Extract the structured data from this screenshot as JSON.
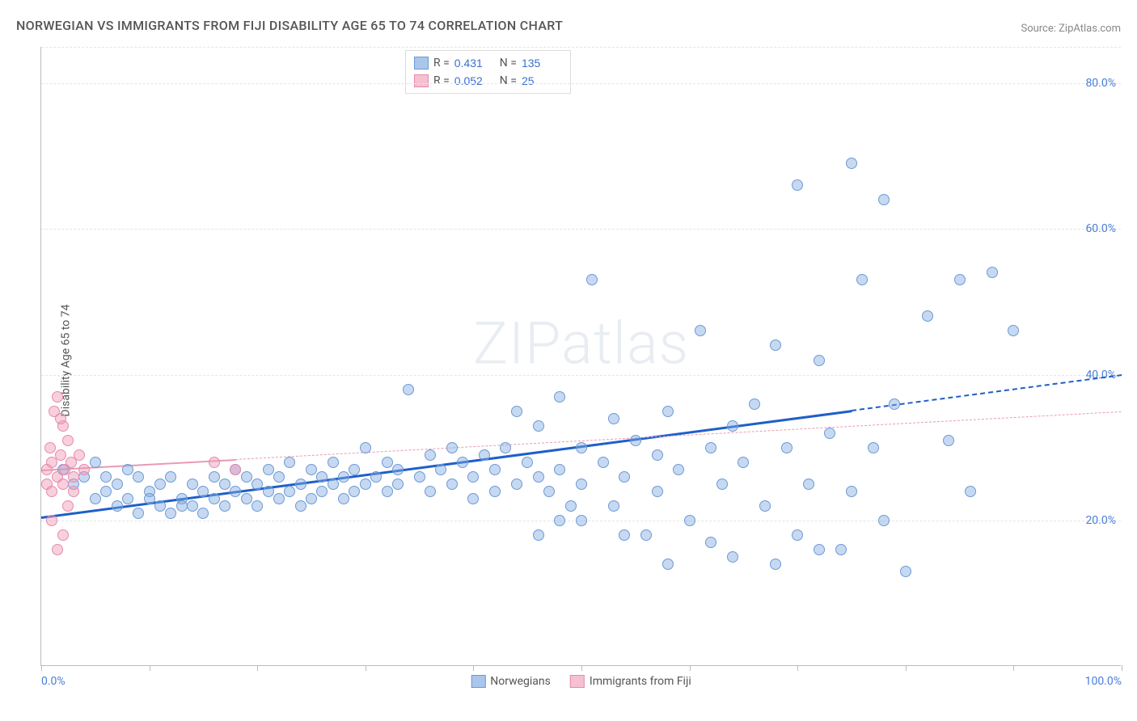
{
  "title": "NORWEGIAN VS IMMIGRANTS FROM FIJI DISABILITY AGE 65 TO 74 CORRELATION CHART",
  "source": "Source: ZipAtlas.com",
  "ylabel": "Disability Age 65 to 74",
  "watermark": "ZIPatlas",
  "chart": {
    "type": "scatter",
    "background_color": "#ffffff",
    "grid_color": "#e6e6e6",
    "axis_color": "#bbbbbb",
    "title_fontsize": 16,
    "label_fontsize": 14,
    "tick_fontsize": 14,
    "tick_label_color": "#4a7dd8",
    "xlim": [
      0,
      100
    ],
    "ylim": [
      0,
      85
    ],
    "x_ticks": [
      0,
      10,
      20,
      30,
      40,
      50,
      60,
      70,
      80,
      90,
      100
    ],
    "x_tick_labels": {
      "0": "0.0%",
      "100": "100.0%"
    },
    "y_gridlines": [
      20,
      40,
      60,
      80
    ],
    "y_tick_labels": {
      "20": "20.0%",
      "40": "40.0%",
      "60": "60.0%",
      "80": "80.0%"
    },
    "marker_radius": 7,
    "marker_stroke_width": 1.2,
    "series": [
      {
        "name": "Norwegians",
        "fill_color": "rgba(130,170,225,0.45)",
        "stroke_color": "#6b9ad6",
        "legend_swatch_fill": "#aac6ea",
        "legend_swatch_stroke": "#6b9ad6",
        "stats": {
          "R": "0.431",
          "N": "135"
        },
        "trend": {
          "x1": 0,
          "y1": 20.5,
          "x2": 100,
          "y2": 40.0,
          "color": "#1f5fc9",
          "width": 3.5,
          "solid_until_x": 75
        },
        "points": [
          [
            2,
            27
          ],
          [
            3,
            25
          ],
          [
            4,
            26
          ],
          [
            5,
            28
          ],
          [
            5,
            23
          ],
          [
            6,
            26
          ],
          [
            6,
            24
          ],
          [
            7,
            25
          ],
          [
            7,
            22
          ],
          [
            8,
            27
          ],
          [
            8,
            23
          ],
          [
            9,
            26
          ],
          [
            9,
            21
          ],
          [
            10,
            24
          ],
          [
            10,
            23
          ],
          [
            11,
            25
          ],
          [
            11,
            22
          ],
          [
            12,
            26
          ],
          [
            12,
            21
          ],
          [
            13,
            23
          ],
          [
            13,
            22
          ],
          [
            14,
            25
          ],
          [
            14,
            22
          ],
          [
            15,
            24
          ],
          [
            15,
            21
          ],
          [
            16,
            26
          ],
          [
            16,
            23
          ],
          [
            17,
            25
          ],
          [
            17,
            22
          ],
          [
            18,
            24
          ],
          [
            18,
            27
          ],
          [
            19,
            23
          ],
          [
            19,
            26
          ],
          [
            20,
            25
          ],
          [
            20,
            22
          ],
          [
            21,
            24
          ],
          [
            21,
            27
          ],
          [
            22,
            23
          ],
          [
            22,
            26
          ],
          [
            23,
            28
          ],
          [
            23,
            24
          ],
          [
            24,
            25
          ],
          [
            24,
            22
          ],
          [
            25,
            27
          ],
          [
            25,
            23
          ],
          [
            26,
            26
          ],
          [
            26,
            24
          ],
          [
            27,
            28
          ],
          [
            27,
            25
          ],
          [
            28,
            23
          ],
          [
            28,
            26
          ],
          [
            29,
            27
          ],
          [
            29,
            24
          ],
          [
            30,
            25
          ],
          [
            30,
            30
          ],
          [
            31,
            26
          ],
          [
            32,
            24
          ],
          [
            32,
            28
          ],
          [
            33,
            27
          ],
          [
            33,
            25
          ],
          [
            34,
            38
          ],
          [
            35,
            26
          ],
          [
            36,
            24
          ],
          [
            36,
            29
          ],
          [
            37,
            27
          ],
          [
            38,
            25
          ],
          [
            38,
            30
          ],
          [
            39,
            28
          ],
          [
            40,
            26
          ],
          [
            40,
            23
          ],
          [
            41,
            29
          ],
          [
            42,
            27
          ],
          [
            42,
            24
          ],
          [
            43,
            30
          ],
          [
            44,
            25
          ],
          [
            44,
            35
          ],
          [
            45,
            28
          ],
          [
            46,
            26
          ],
          [
            46,
            33
          ],
          [
            47,
            24
          ],
          [
            48,
            37
          ],
          [
            48,
            27
          ],
          [
            49,
            22
          ],
          [
            50,
            30
          ],
          [
            50,
            25
          ],
          [
            51,
            53
          ],
          [
            52,
            28
          ],
          [
            53,
            34
          ],
          [
            53,
            22
          ],
          [
            54,
            26
          ],
          [
            55,
            31
          ],
          [
            56,
            18
          ],
          [
            57,
            29
          ],
          [
            57,
            24
          ],
          [
            58,
            35
          ],
          [
            59,
            27
          ],
          [
            60,
            20
          ],
          [
            61,
            46
          ],
          [
            62,
            30
          ],
          [
            62,
            17
          ],
          [
            63,
            25
          ],
          [
            64,
            33
          ],
          [
            64,
            15
          ],
          [
            65,
            28
          ],
          [
            66,
            36
          ],
          [
            67,
            22
          ],
          [
            68,
            44
          ],
          [
            69,
            30
          ],
          [
            70,
            66
          ],
          [
            70,
            18
          ],
          [
            71,
            25
          ],
          [
            72,
            42
          ],
          [
            73,
            32
          ],
          [
            74,
            16
          ],
          [
            75,
            69
          ],
          [
            75,
            24
          ],
          [
            76,
            53
          ],
          [
            77,
            30
          ],
          [
            78,
            64
          ],
          [
            78,
            20
          ],
          [
            79,
            36
          ],
          [
            80,
            13
          ],
          [
            82,
            48
          ],
          [
            84,
            31
          ],
          [
            85,
            53
          ],
          [
            86,
            24
          ],
          [
            88,
            54
          ],
          [
            90,
            46
          ],
          [
            72,
            16
          ],
          [
            68,
            14
          ],
          [
            58,
            14
          ],
          [
            54,
            18
          ],
          [
            50,
            20
          ],
          [
            48,
            20
          ],
          [
            46,
            18
          ]
        ]
      },
      {
        "name": "Immigrants from Fiji",
        "fill_color": "rgba(240,150,180,0.45)",
        "stroke_color": "#e68aab",
        "legend_swatch_fill": "#f5c0d2",
        "legend_swatch_stroke": "#e68aab",
        "stats": {
          "R": "0.052",
          "N": "25"
        },
        "trend": {
          "x1": 0,
          "y1": 27.0,
          "x2": 100,
          "y2": 35.0,
          "color": "#e89ab5",
          "width": 2,
          "solid_until_x": 18
        },
        "points": [
          [
            0.5,
            27
          ],
          [
            0.5,
            25
          ],
          [
            0.8,
            30
          ],
          [
            1,
            28
          ],
          [
            1,
            24
          ],
          [
            1.2,
            35
          ],
          [
            1.5,
            26
          ],
          [
            1.5,
            37
          ],
          [
            1.8,
            29
          ],
          [
            2,
            25
          ],
          [
            2,
            33
          ],
          [
            2.2,
            27
          ],
          [
            2.5,
            22
          ],
          [
            2.5,
            31
          ],
          [
            2.8,
            28
          ],
          [
            3,
            26
          ],
          [
            3,
            24
          ],
          [
            3.5,
            29
          ],
          [
            4,
            27
          ],
          [
            1,
            20
          ],
          [
            2,
            18
          ],
          [
            1.5,
            16
          ],
          [
            1.8,
            34
          ],
          [
            18,
            27
          ],
          [
            16,
            28
          ]
        ]
      }
    ]
  },
  "bottom_legend": [
    {
      "label": "Norwegians",
      "fill": "#aac6ea",
      "stroke": "#6b9ad6"
    },
    {
      "label": "Immigrants from Fiji",
      "fill": "#f5c0d2",
      "stroke": "#e68aab"
    }
  ]
}
